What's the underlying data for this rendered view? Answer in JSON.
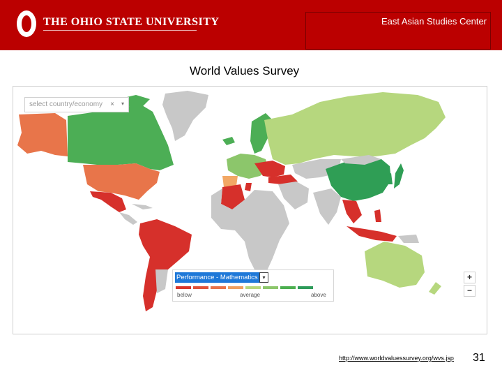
{
  "header": {
    "university": "THE OHIO STATE UNIVERSITY",
    "center": "East Asian Studies Center"
  },
  "slide": {
    "title": "World Values Survey",
    "url": "http://www.worldvaluessurvey.org/wvs.jsp",
    "page_number": "31"
  },
  "map": {
    "search_placeholder": "select country/economy",
    "clear_glyph": "×",
    "dropdown_glyph": "▾",
    "legend": {
      "selected_metric": "Performance - Mathematics",
      "low_label": "below",
      "mid_label": "average",
      "high_label": "above",
      "scale_colors": [
        "#d9362b",
        "#e0533a",
        "#e8734a",
        "#f0a060",
        "#b7d67c",
        "#8cc66b",
        "#4caf50",
        "#2e9b5a"
      ]
    },
    "zoom_in": "+",
    "zoom_out": "−",
    "colors": {
      "no_data": "#c8c8c8",
      "ocean": "#ffffff",
      "dark_green": "#2f9e55",
      "green": "#4cae55",
      "light_green": "#b6d77e",
      "orange": "#e8754a",
      "light_orange": "#f2a865",
      "red": "#d6302b"
    }
  }
}
